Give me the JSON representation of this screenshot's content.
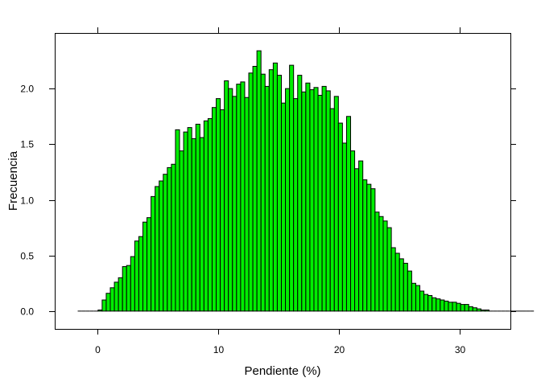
{
  "chart_data": {
    "type": "bar",
    "subtype": "histogram",
    "xlabel": "Pendiente (%)",
    "ylabel": "Frecuencia",
    "xlim": [
      -3.5,
      34.2
    ],
    "ylim": [
      -0.16,
      2.5
    ],
    "x_ticks": [
      0,
      10,
      20,
      30
    ],
    "x_tick_labels": [
      "0",
      "10",
      "20",
      "30"
    ],
    "y_ticks": [
      0.0,
      0.5,
      1.0,
      1.5,
      2.0
    ],
    "y_tick_labels": [
      "0.0",
      "0.5",
      "1.0",
      "1.5",
      "2.0"
    ],
    "bin_start": -1.6,
    "bin_width": 0.337,
    "bar_color": "#00ee00",
    "bar_edge_color": "#000000",
    "grid": false,
    "legend": "none",
    "values": [
      0,
      0,
      0,
      0,
      0,
      0.01,
      0.1,
      0.16,
      0.21,
      0.26,
      0.3,
      0.4,
      0.41,
      0.49,
      0.63,
      0.67,
      0.8,
      0.84,
      1.03,
      1.12,
      1.17,
      1.23,
      1.29,
      1.32,
      1.63,
      1.44,
      1.61,
      1.65,
      1.55,
      1.68,
      1.56,
      1.71,
      1.73,
      1.83,
      1.91,
      1.81,
      2.07,
      2.0,
      1.93,
      2.04,
      2.06,
      1.92,
      2.14,
      2.2,
      2.34,
      2.13,
      2.02,
      2.17,
      2.23,
      2.12,
      1.87,
      2.0,
      2.21,
      1.91,
      2.12,
      1.97,
      2.05,
      1.99,
      2.01,
      1.94,
      2.02,
      1.98,
      1.82,
      1.93,
      1.69,
      1.51,
      1.75,
      1.44,
      1.28,
      1.35,
      1.18,
      1.14,
      1.1,
      0.89,
      0.85,
      0.81,
      0.75,
      0.57,
      0.52,
      0.47,
      0.43,
      0.36,
      0.25,
      0.23,
      0.18,
      0.15,
      0.14,
      0.12,
      0.11,
      0.1,
      0.09,
      0.08,
      0.08,
      0.07,
      0.06,
      0.06,
      0.04,
      0.03,
      0.02,
      0.01,
      0.01,
      0,
      0,
      0,
      0,
      0,
      0,
      0,
      0,
      0,
      0,
      0
    ]
  }
}
